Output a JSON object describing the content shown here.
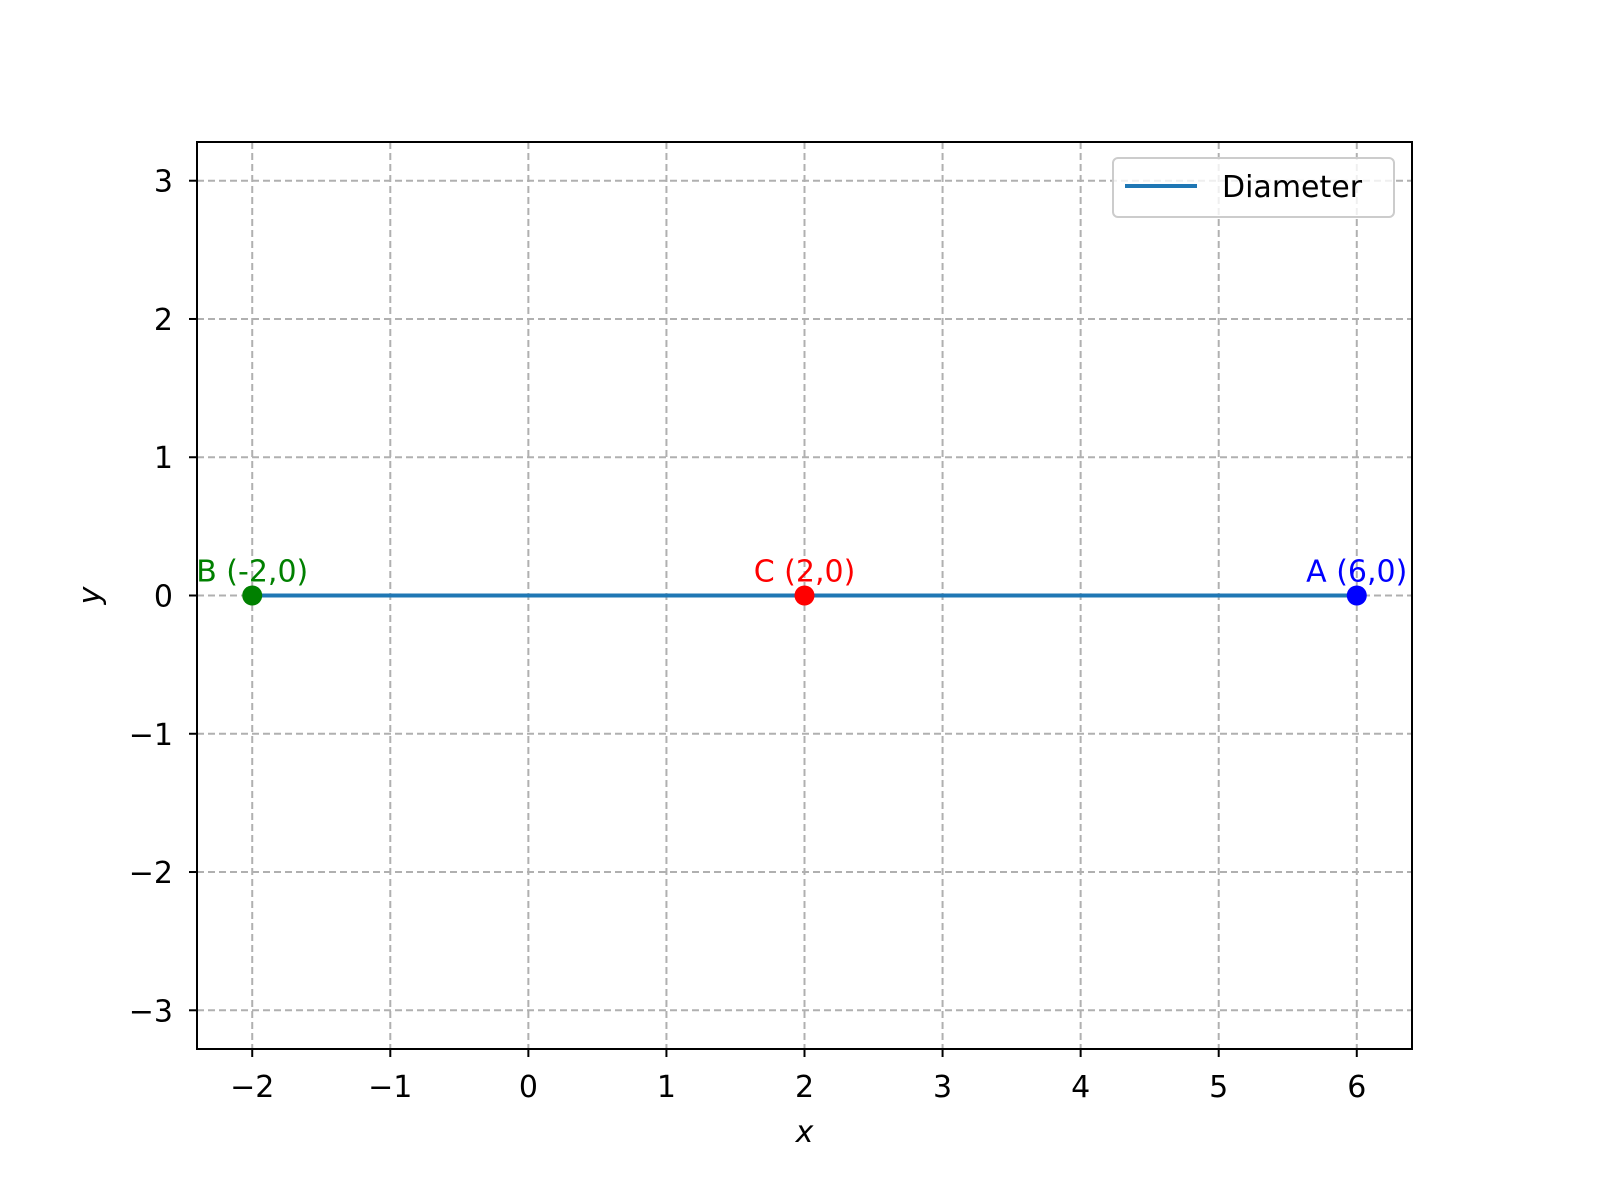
{
  "chart_data": {
    "type": "line",
    "title": "",
    "xlabel": "x",
    "ylabel": "y",
    "xlim": [
      -2.4,
      6.4
    ],
    "ylim": [
      -3.28,
      3.28
    ],
    "xticks": [
      -2,
      -1,
      0,
      1,
      2,
      3,
      4,
      5,
      6
    ],
    "yticks": [
      -3,
      -2,
      -1,
      0,
      1,
      2,
      3
    ],
    "xtick_labels": [
      "−2",
      "−1",
      "0",
      "1",
      "2",
      "3",
      "4",
      "5",
      "6"
    ],
    "ytick_labels": [
      "−3",
      "−2",
      "−1",
      "0",
      "1",
      "2",
      "3"
    ],
    "grid": true,
    "legend_position": "top-right",
    "series": [
      {
        "name": "Diameter",
        "x": [
          -2,
          6
        ],
        "y": [
          0,
          0
        ],
        "color": "#1f77b4"
      }
    ],
    "points": [
      {
        "label": "A (6,0)",
        "x": 6,
        "y": 0,
        "color": "#0000ff"
      },
      {
        "label": "B (-2,0)",
        "x": -2,
        "y": 0,
        "color": "#008000"
      },
      {
        "label": "C (2,0)",
        "x": 2,
        "y": 0,
        "color": "#ff0000"
      }
    ]
  }
}
